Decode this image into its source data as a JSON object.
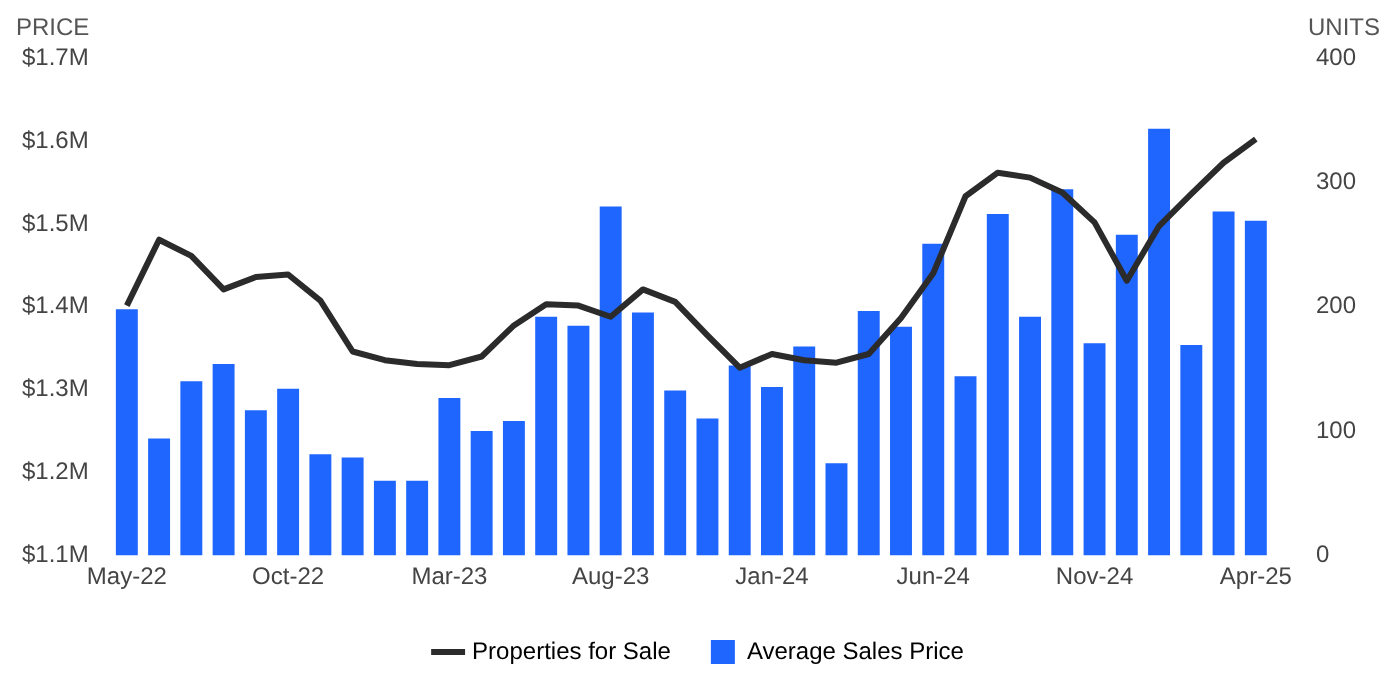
{
  "chart_data": {
    "type": "bar",
    "ylabel": "PRICE",
    "y2label": "UNITS",
    "categories": [
      "May-22",
      null,
      null,
      null,
      null,
      "Oct-22",
      null,
      null,
      null,
      null,
      "Mar-23",
      null,
      null,
      null,
      null,
      "Aug-23",
      null,
      null,
      null,
      null,
      "Jan-24",
      null,
      null,
      null,
      null,
      "Jun-24",
      null,
      null,
      null,
      null,
      "Nov-24",
      null,
      null,
      null,
      null,
      "Apr-25"
    ],
    "series": [
      {
        "name": "Properties for Sale",
        "type": "line",
        "axis": "y2",
        "color": "#2b2b2b",
        "values": [
          201,
          254,
          241,
          214,
          224,
          226,
          205,
          164,
          157,
          154,
          153,
          160,
          185,
          202,
          201,
          192,
          214,
          204,
          177,
          151,
          162,
          157,
          155,
          162,
          191,
          227,
          289,
          308,
          304,
          292,
          268,
          221,
          265,
          291,
          316,
          335
        ]
      },
      {
        "name": "Average Sales Price",
        "color": "#1f66ff",
        "values": [
          1.397,
          1.241,
          1.31,
          1.331,
          1.275,
          1.301,
          1.222,
          1.218,
          1.19,
          1.19,
          1.29,
          1.25,
          1.262,
          1.388,
          1.377,
          1.521,
          1.393,
          1.299,
          1.265,
          1.329,
          1.303,
          1.352,
          1.211,
          1.395,
          1.376,
          1.476,
          1.316,
          1.512,
          1.388,
          1.542,
          1.356,
          1.487,
          1.615,
          1.354,
          1.515,
          1.504
        ]
      }
    ],
    "ylim": [
      1.1,
      1.7
    ],
    "yticks": [
      {
        "value": 1.1,
        "label": "$1.1M"
      },
      {
        "value": 1.2,
        "label": "$1.2M"
      },
      {
        "value": 1.3,
        "label": "$1.3M"
      },
      {
        "value": 1.4,
        "label": "$1.4M"
      },
      {
        "value": 1.5,
        "label": "$1.5M"
      },
      {
        "value": 1.6,
        "label": "$1.6M"
      },
      {
        "value": 1.7,
        "label": "$1.7M"
      }
    ],
    "y2lim": [
      0,
      400
    ],
    "y2ticks": [
      0,
      100,
      200,
      300,
      400
    ],
    "grid": false,
    "legend": "bottom",
    "marker": "none",
    "line_style": "solid"
  }
}
